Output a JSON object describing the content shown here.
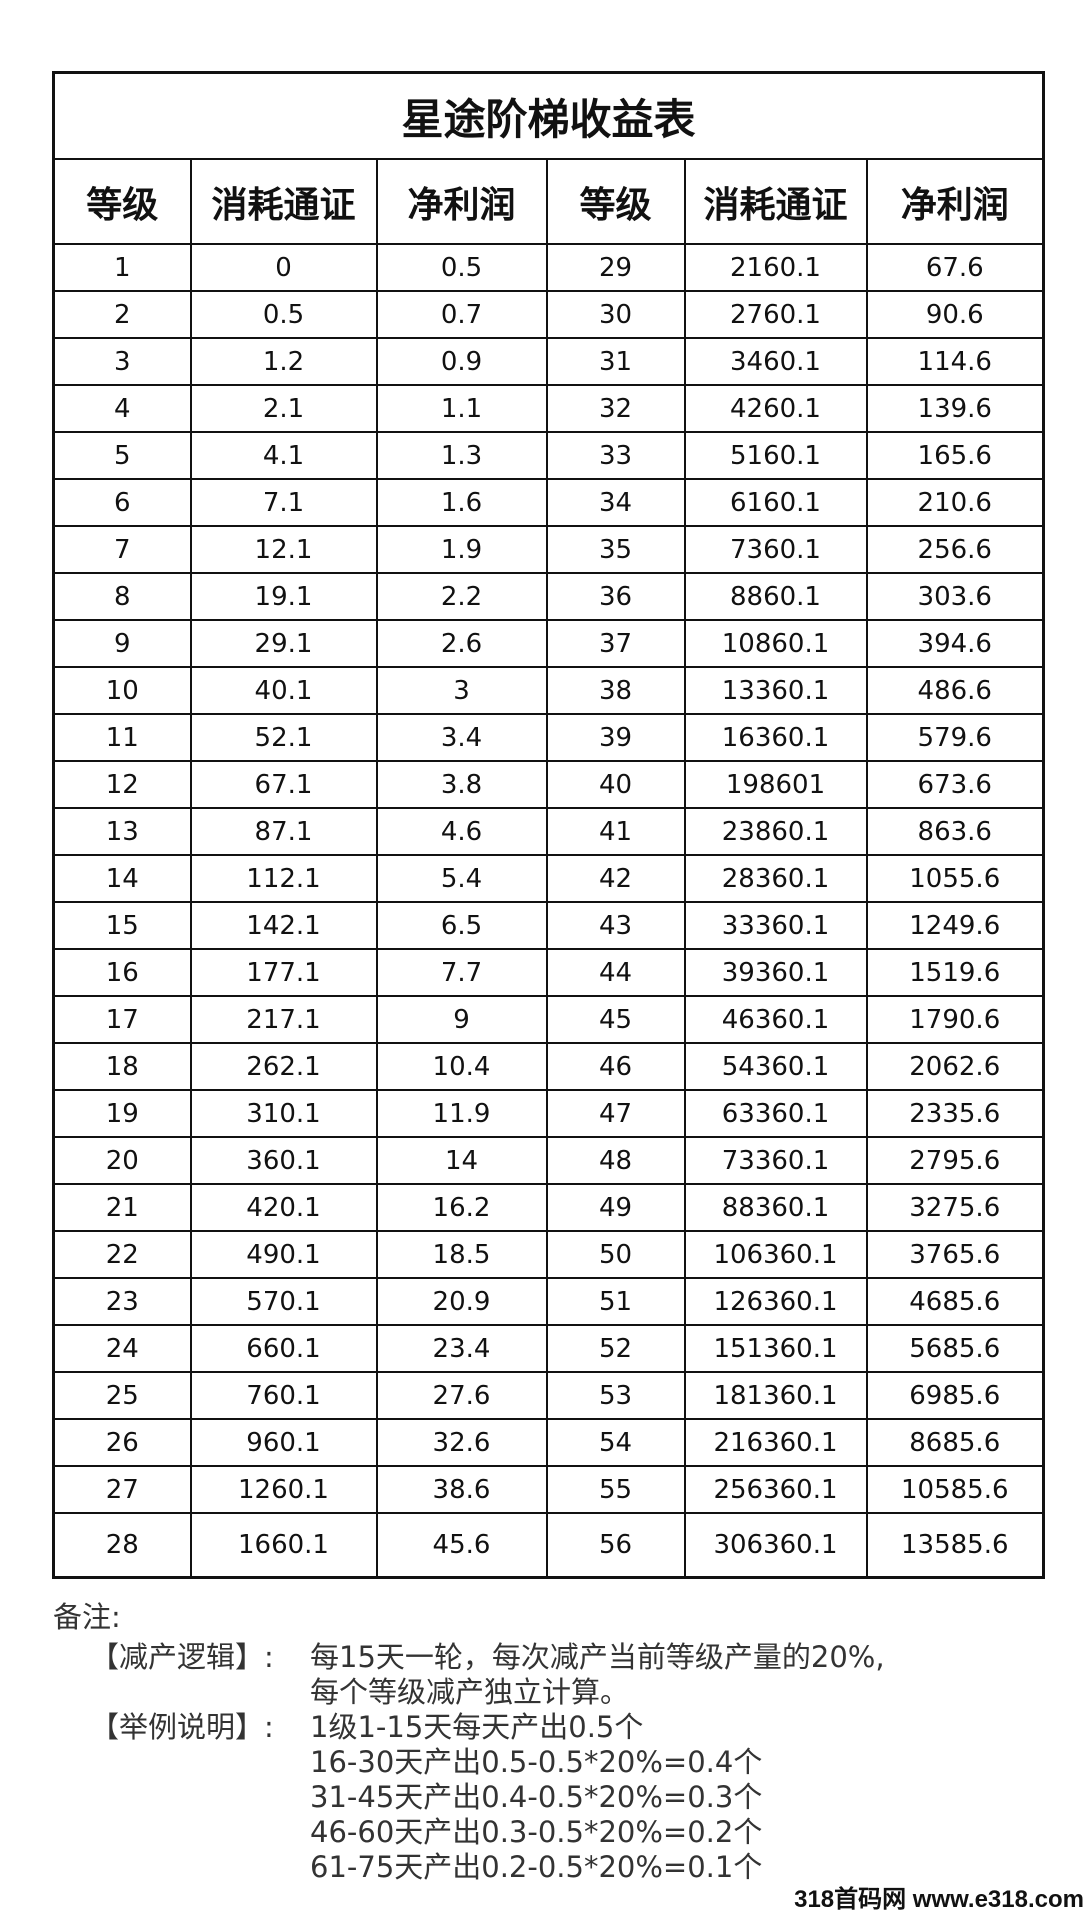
{
  "title": "星途阶梯收益表",
  "headers": [
    "等级",
    "消耗通证",
    "净利润",
    "等级",
    "消耗通证",
    "净利润"
  ],
  "rows": [
    [
      "1",
      "0",
      "0.5",
      "29",
      "2160.1",
      "67.6"
    ],
    [
      "2",
      "0.5",
      "0.7",
      "30",
      "2760.1",
      "90.6"
    ],
    [
      "3",
      "1.2",
      "0.9",
      "31",
      "3460.1",
      "114.6"
    ],
    [
      "4",
      "2.1",
      "1.1",
      "32",
      "4260.1",
      "139.6"
    ],
    [
      "5",
      "4.1",
      "1.3",
      "33",
      "5160.1",
      "165.6"
    ],
    [
      "6",
      "7.1",
      "1.6",
      "34",
      "6160.1",
      "210.6"
    ],
    [
      "7",
      "12.1",
      "1.9",
      "35",
      "7360.1",
      "256.6"
    ],
    [
      "8",
      "19.1",
      "2.2",
      "36",
      "8860.1",
      "303.6"
    ],
    [
      "9",
      "29.1",
      "2.6",
      "37",
      "10860.1",
      "394.6"
    ],
    [
      "10",
      "40.1",
      "3",
      "38",
      "13360.1",
      "486.6"
    ],
    [
      "11",
      "52.1",
      "3.4",
      "39",
      "16360.1",
      "579.6"
    ],
    [
      "12",
      "67.1",
      "3.8",
      "40",
      "198601",
      "673.6"
    ],
    [
      "13",
      "87.1",
      "4.6",
      "41",
      "23860.1",
      "863.6"
    ],
    [
      "14",
      "112.1",
      "5.4",
      "42",
      "28360.1",
      "1055.6"
    ],
    [
      "15",
      "142.1",
      "6.5",
      "43",
      "33360.1",
      "1249.6"
    ],
    [
      "16",
      "177.1",
      "7.7",
      "44",
      "39360.1",
      "1519.6"
    ],
    [
      "17",
      "217.1",
      "9",
      "45",
      "46360.1",
      "1790.6"
    ],
    [
      "18",
      "262.1",
      "10.4",
      "46",
      "54360.1",
      "2062.6"
    ],
    [
      "19",
      "310.1",
      "11.9",
      "47",
      "63360.1",
      "2335.6"
    ],
    [
      "20",
      "360.1",
      "14",
      "48",
      "73360.1",
      "2795.6"
    ],
    [
      "21",
      "420.1",
      "16.2",
      "49",
      "88360.1",
      "3275.6"
    ],
    [
      "22",
      "490.1",
      "18.5",
      "50",
      "106360.1",
      "3765.6"
    ],
    [
      "23",
      "570.1",
      "20.9",
      "51",
      "126360.1",
      "4685.6"
    ],
    [
      "24",
      "660.1",
      "23.4",
      "52",
      "151360.1",
      "5685.6"
    ],
    [
      "25",
      "760.1",
      "27.6",
      "53",
      "181360.1",
      "6985.6"
    ],
    [
      "26",
      "960.1",
      "32.6",
      "54",
      "216360.1",
      "8685.6"
    ],
    [
      "27",
      "1260.1",
      "38.6",
      "55",
      "256360.1",
      "10585.6"
    ],
    [
      "28",
      "1660.1",
      "45.6",
      "56",
      "306360.1",
      "13585.6"
    ]
  ],
  "notes": {
    "label": "备注:",
    "items": [
      {
        "key": "【减产逻辑】:",
        "lines": [
          "每15天一轮，每次减产当前等级产量的20%,",
          "每个等级减产独立计算。"
        ]
      },
      {
        "key": "【举例说明】:",
        "lines": [
          "1级1-15天每天产出0.5个",
          "16-30天产出0.5-0.5*20%=0.4个",
          "31-45天产出0.4-0.5*20%=0.3个",
          "46-60天产出0.3-0.5*20%=0.2个",
          "61-75天产出0.2-0.5*20%=0.1个"
        ]
      }
    ]
  },
  "watermark": "318首码网 www.e318.com"
}
